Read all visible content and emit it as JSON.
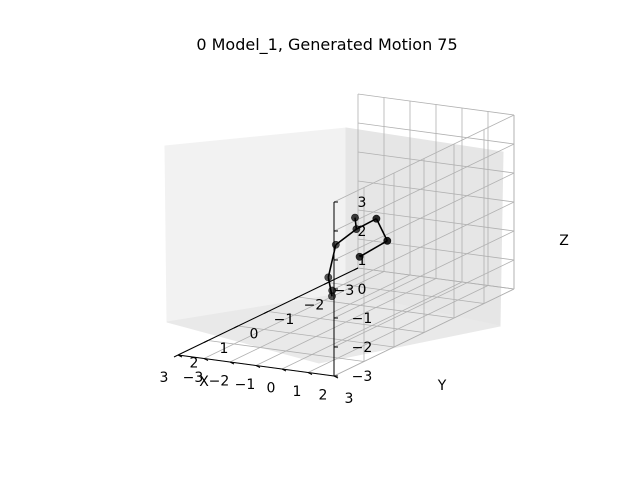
{
  "chart_data": {
    "type": "scatter",
    "projection": "3d",
    "title": "0 Model_1, Generated Motion 75",
    "xlabel": "X",
    "ylabel": "Y",
    "zlabel": "Z",
    "xlim": [
      -3,
      3
    ],
    "ylim": [
      -3,
      3
    ],
    "zlim": [
      -3,
      3
    ],
    "grid": true,
    "x_ticks": [
      "−3",
      "−2",
      "−1",
      "0",
      "1",
      "2",
      "3"
    ],
    "y_ticks": [
      "−3",
      "−2",
      "−1",
      "0",
      "1",
      "2",
      "3"
    ],
    "z_ticks": [
      "−3",
      "−2",
      "−1",
      "0",
      "1",
      "2",
      "3"
    ],
    "point_color": "#000000",
    "series": [
      {
        "joints": [
          {
            "x": -0.3,
            "y": 0.0,
            "z": 0.45
          },
          {
            "x": 0.0,
            "y": 0.4,
            "z": 0.25
          },
          {
            "x": -1.1,
            "y": -0.1,
            "z": 0.0
          },
          {
            "x": -1.55,
            "y": -0.2,
            "z": -1.0
          },
          {
            "x": -0.8,
            "y": -0.4,
            "z": -1.2
          },
          {
            "x": 0.6,
            "y": 0.3,
            "z": 0.0
          },
          {
            "x": 0.85,
            "y": 0.3,
            "z": -1.0
          },
          {
            "x": 0.9,
            "y": 0.5,
            "z": -1.6
          },
          {
            "x": 0.2,
            "y": -0.3,
            "z": -1.85
          }
        ],
        "bones": [
          [
            0,
            1
          ],
          [
            1,
            2
          ],
          [
            2,
            3
          ],
          [
            3,
            4
          ],
          [
            1,
            5
          ],
          [
            5,
            6
          ],
          [
            6,
            7
          ]
        ]
      }
    ]
  }
}
